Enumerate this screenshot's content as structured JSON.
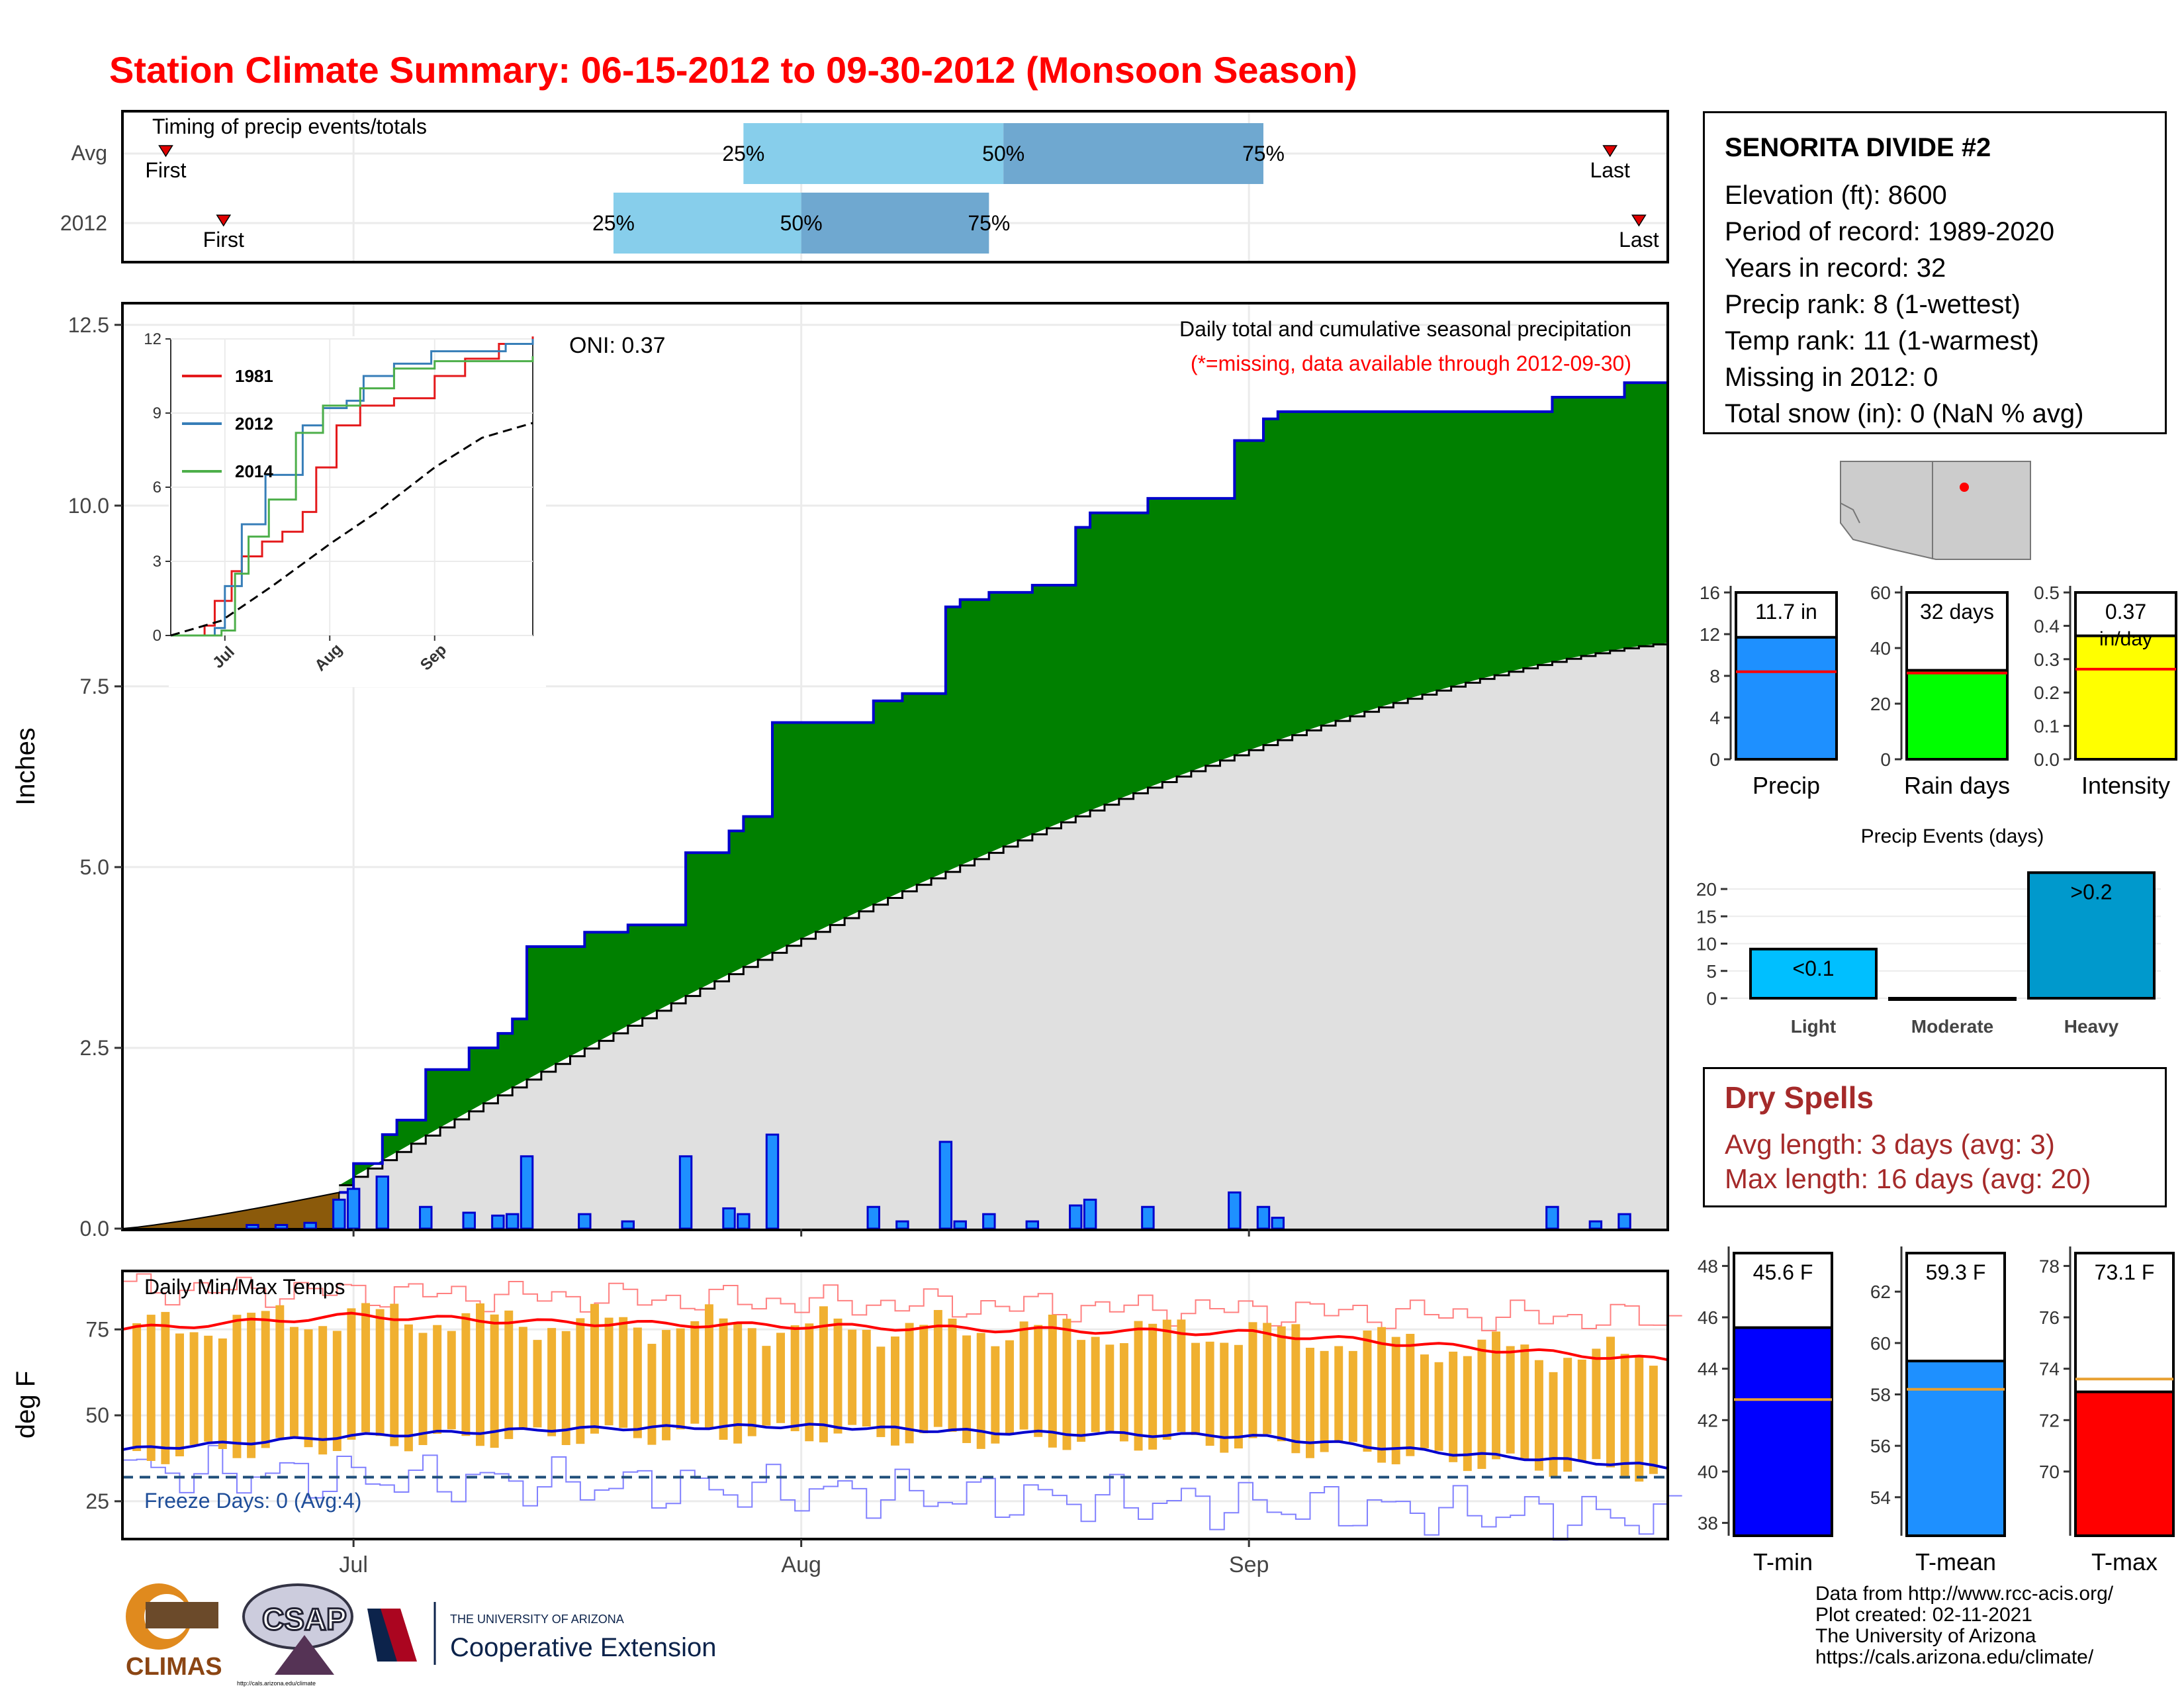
{
  "title": "Station Climate Summary: 06-15-2012 to 09-30-2012 (Monsoon Season)",
  "colors": {
    "title": "#ff0000",
    "cum_obs_fill": "#008000",
    "cum_obs_line": "#0000cd",
    "cum_avg_fill": "#e0e0e0",
    "prior_fill": "#8b5a0b",
    "daily_bar": "#1e90ff",
    "timing_light": "#87ceeb",
    "timing_dark": "#6fa8d0",
    "temp_bar": "#f0b030",
    "tmax_line": "#ff0000",
    "tmin_line": "#0000cd",
    "dry_spells": "#a52a2a"
  },
  "timing": {
    "title": "Timing of precip events/totals",
    "rows": [
      {
        "label": "Avg",
        "first": "06-18",
        "p25": "07-28",
        "p50": "08-15",
        "p75": "09-02",
        "last": "09-26"
      },
      {
        "label": "2012",
        "first": "06-22",
        "p25": "07-19",
        "p50": "08-01",
        "p75": "08-14",
        "last": "09-28"
      }
    ],
    "first_label": "First",
    "last_label": "Last",
    "p25_label": "25%",
    "p50_label": "50%",
    "p75_label": "75%"
  },
  "precip_panel": {
    "ylabel": "Inches",
    "oni": "ONI: 0.37",
    "caption": "Daily total and cumulative seasonal precipitation",
    "missing_note": "(*=missing, data available through 2012-09-30)",
    "yticks": [
      "0.0",
      "2.5",
      "5.0",
      "7.5",
      "10.0",
      "12.5"
    ]
  },
  "inset": {
    "yticks": [
      "0",
      "3",
      "6",
      "9",
      "12"
    ],
    "xticks": [
      "Jul",
      "Aug",
      "Sep"
    ],
    "legend": [
      "1981",
      "2012",
      "2014"
    ]
  },
  "temp_panel": {
    "ylabel": "deg F",
    "title": "Daily Min/Max Temps",
    "freeze": "Freeze Days: 0 (Avg:4)",
    "yticks": [
      "25",
      "50",
      "75"
    ],
    "xticks": [
      "Jul",
      "Aug",
      "Sep"
    ]
  },
  "station": {
    "name": "SENORITA DIVIDE #2",
    "lines": [
      "Elevation (ft): 8600",
      "Period of record: 1989-2020",
      "Years in record: 32",
      "Precip rank: 8 (1-wettest)",
      "Temp rank: 11 (1-warmest)",
      "Missing in 2012: 0",
      "Total snow (in): 0 (NaN % avg)"
    ]
  },
  "summary_bars": [
    {
      "name": "Precip",
      "label": "11.7 in",
      "value": 11.7,
      "avg": 8.4,
      "ymax": 16,
      "yticks": [
        "0",
        "4",
        "8",
        "12",
        "16"
      ],
      "tickvals": [
        0,
        4,
        8,
        12,
        16
      ],
      "color": "#1e90ff"
    },
    {
      "name": "Rain days",
      "label": "32 days",
      "value": 32,
      "avg": 31,
      "ymax": 60,
      "yticks": [
        "0",
        "20",
        "40",
        "60"
      ],
      "tickvals": [
        0,
        20,
        40,
        60
      ],
      "color": "#00ff00"
    },
    {
      "name": "Intensity",
      "label": "0.37",
      "label2": "in/day",
      "value": 0.37,
      "avg": 0.27,
      "ymax": 0.5,
      "yticks": [
        "0.0",
        "0.1",
        "0.2",
        "0.3",
        "0.4",
        "0.5"
      ],
      "tickvals": [
        0,
        0.1,
        0.2,
        0.3,
        0.4,
        0.5
      ],
      "color": "#ffff00"
    }
  ],
  "events": {
    "title": "Precip Events (days)",
    "categories": [
      "Light",
      "Moderate",
      "Heavy"
    ],
    "labels": [
      "<0.1",
      "",
      ">0.2"
    ],
    "values": [
      9,
      0,
      23
    ],
    "colors": [
      "#00bfff",
      "#1e90ff",
      "#0099cc"
    ],
    "yticks": [
      "0",
      "5",
      "10",
      "15",
      "20"
    ],
    "tickvals": [
      0,
      5,
      10,
      15,
      20
    ]
  },
  "dry_spells": {
    "title": "Dry Spells",
    "avg": "Avg length: 3 days (avg: 3)",
    "max": "Max length: 16 days (avg: 20)"
  },
  "temp_bars": [
    {
      "name": "T-min",
      "label": "45.6 F",
      "value": 45.6,
      "avg": 42.8,
      "ymin": 37.5,
      "ymax": 48.5,
      "yticks": [
        "38",
        "40",
        "42",
        "44",
        "46",
        "48"
      ],
      "tickvals": [
        38,
        40,
        42,
        44,
        46,
        48
      ],
      "color": "#0000ff"
    },
    {
      "name": "T-mean",
      "label": "59.3 F",
      "value": 59.3,
      "avg": 58.2,
      "ymin": 52.5,
      "ymax": 63.5,
      "yticks": [
        "54",
        "56",
        "58",
        "60",
        "62"
      ],
      "tickvals": [
        54,
        56,
        58,
        60,
        62
      ],
      "color": "#1e90ff"
    },
    {
      "name": "T-max",
      "label": "73.1 F",
      "value": 73.1,
      "avg": 73.6,
      "ymin": 67.5,
      "ymax": 78.5,
      "yticks": [
        "70",
        "72",
        "74",
        "76",
        "78"
      ],
      "tickvals": [
        70,
        72,
        74,
        76,
        78
      ],
      "color": "#ff0000"
    }
  ],
  "credits": [
    "Data from http://www.rcc-acis.org/",
    "Plot created: 02-11-2021",
    "The University of Arizona",
    "https://cals.arizona.edu/climate/"
  ],
  "logos": {
    "climas": "CLIMAS",
    "csap": "CSAP",
    "csap_url": "http://cals.arizona.edu/climate",
    "ua_top": "THE UNIVERSITY OF ARIZONA",
    "ua_bottom": "Cooperative Extension"
  },
  "chart_data": [
    {
      "type": "area",
      "title": "Daily total and cumulative seasonal precipitation",
      "ylabel": "Inches",
      "ylim": [
        0,
        12.8
      ],
      "x_start": "2012-06-15",
      "x_end": "2012-09-30",
      "series": [
        {
          "name": "2012",
          "steps": [
            [
              "2012-06-30",
              0.5
            ],
            [
              "2012-07-01",
              0.9
            ],
            [
              "2012-07-03",
              1.3
            ],
            [
              "2012-07-04",
              1.5
            ],
            [
              "2012-07-06",
              2.2
            ],
            [
              "2012-07-09",
              2.5
            ],
            [
              "2012-07-11",
              2.7
            ],
            [
              "2012-07-12",
              2.9
            ],
            [
              "2012-07-13",
              3.9
            ],
            [
              "2012-07-17",
              4.1
            ],
            [
              "2012-07-20",
              4.2
            ],
            [
              "2012-07-24",
              5.2
            ],
            [
              "2012-07-27",
              5.5
            ],
            [
              "2012-07-28",
              5.7
            ],
            [
              "2012-07-30",
              7.0
            ],
            [
              "2012-08-06",
              7.3
            ],
            [
              "2012-08-08",
              7.4
            ],
            [
              "2012-08-11",
              8.6
            ],
            [
              "2012-08-12",
              8.7
            ],
            [
              "2012-08-14",
              8.8
            ],
            [
              "2012-08-17",
              8.9
            ],
            [
              "2012-08-20",
              9.7
            ],
            [
              "2012-08-21",
              9.9
            ],
            [
              "2012-08-25",
              10.1
            ],
            [
              "2012-08-31",
              10.9
            ],
            [
              "2012-09-02",
              11.2
            ],
            [
              "2012-09-03",
              11.3
            ],
            [
              "2012-09-05",
              11.3
            ],
            [
              "2012-09-22",
              11.5
            ],
            [
              "2012-09-27",
              11.7
            ]
          ]
        },
        {
          "name": "prior",
          "steps": [
            [
              "2012-06-15",
              0.0
            ],
            [
              "2012-06-30",
              0.5
            ]
          ]
        },
        {
          "name": "average",
          "start": 0.6,
          "end": 8.1
        }
      ],
      "daily_bars": [
        [
          "2012-06-24",
          0.05
        ],
        [
          "2012-06-26",
          0.05
        ],
        [
          "2012-06-28",
          0.08
        ],
        [
          "2012-06-30",
          0.4
        ],
        [
          "2012-07-01",
          0.55
        ],
        [
          "2012-07-03",
          0.72
        ],
        [
          "2012-07-06",
          0.3
        ],
        [
          "2012-07-09",
          0.22
        ],
        [
          "2012-07-11",
          0.18
        ],
        [
          "2012-07-12",
          0.2
        ],
        [
          "2012-07-13",
          1.0
        ],
        [
          "2012-07-17",
          0.2
        ],
        [
          "2012-07-20",
          0.1
        ],
        [
          "2012-07-24",
          1.0
        ],
        [
          "2012-07-27",
          0.28
        ],
        [
          "2012-07-28",
          0.2
        ],
        [
          "2012-07-30",
          1.3
        ],
        [
          "2012-08-06",
          0.3
        ],
        [
          "2012-08-08",
          0.1
        ],
        [
          "2012-08-11",
          1.2
        ],
        [
          "2012-08-12",
          0.1
        ],
        [
          "2012-08-14",
          0.2
        ],
        [
          "2012-08-17",
          0.1
        ],
        [
          "2012-08-20",
          0.32
        ],
        [
          "2012-08-21",
          0.4
        ],
        [
          "2012-08-25",
          0.3
        ],
        [
          "2012-08-31",
          0.5
        ],
        [
          "2012-09-02",
          0.3
        ],
        [
          "2012-09-03",
          0.15
        ],
        [
          "2012-09-22",
          0.3
        ],
        [
          "2012-09-25",
          0.1
        ],
        [
          "2012-09-27",
          0.2
        ]
      ]
    },
    {
      "type": "line",
      "title": "inset cumulative precipitation",
      "ylim": [
        0,
        12
      ],
      "series": [
        {
          "name": "1981",
          "color": "#e41a1c",
          "points": [
            [
              "06-15",
              0
            ],
            [
              "06-25",
              0.4
            ],
            [
              "06-28",
              1.4
            ],
            [
              "07-03",
              2.6
            ],
            [
              "07-06",
              3.2
            ],
            [
              "07-12",
              3.8
            ],
            [
              "07-18",
              4.2
            ],
            [
              "07-24",
              5
            ],
            [
              "07-28",
              6.8
            ],
            [
              "08-03",
              8.5
            ],
            [
              "08-10",
              9.3
            ],
            [
              "08-20",
              9.6
            ],
            [
              "09-01",
              10.5
            ],
            [
              "09-10",
              11.2
            ],
            [
              "09-20",
              11.8
            ],
            [
              "09-30",
              12.1
            ]
          ]
        },
        {
          "name": "2012",
          "color": "#377eb8",
          "points": [
            [
              "06-15",
              0
            ],
            [
              "06-28",
              0.3
            ],
            [
              "07-01",
              2.0
            ],
            [
              "07-06",
              4.5
            ],
            [
              "07-13",
              6.5
            ],
            [
              "07-24",
              8.5
            ],
            [
              "07-30",
              9.2
            ],
            [
              "08-06",
              9.5
            ],
            [
              "08-11",
              10.5
            ],
            [
              "08-20",
              11
            ],
            [
              "08-31",
              11.5
            ],
            [
              "09-22",
              11.8
            ],
            [
              "09-30",
              12.0
            ]
          ]
        },
        {
          "name": "2014",
          "color": "#4daf4a",
          "points": [
            [
              "06-15",
              0
            ],
            [
              "06-30",
              0.2
            ],
            [
              "07-04",
              2.5
            ],
            [
              "07-08",
              4
            ],
            [
              "07-14",
              5.5
            ],
            [
              "07-22",
              8.2
            ],
            [
              "07-30",
              9.3
            ],
            [
              "08-10",
              10
            ],
            [
              "08-20",
              10.8
            ],
            [
              "09-01",
              11.1
            ],
            [
              "09-30",
              11.3
            ]
          ]
        },
        {
          "name": "average",
          "color": "#000000",
          "points": [
            [
              "06-15",
              0
            ],
            [
              "06-30",
              0.6
            ],
            [
              "07-15",
              2.0
            ],
            [
              "08-01",
              3.7
            ],
            [
              "08-15",
              5.0
            ],
            [
              "09-01",
              6.8
            ],
            [
              "09-15",
              8.0
            ],
            [
              "09-30",
              8.6
            ]
          ]
        }
      ]
    },
    {
      "type": "line",
      "title": "Daily Min/Max Temps",
      "ylabel": "deg F",
      "ylim": [
        14,
        92
      ],
      "freeze_line": 32,
      "tmax_avg": [
        [
          "06-15",
          75
        ],
        [
          "07-01",
          79
        ],
        [
          "07-15",
          77
        ],
        [
          "08-01",
          76
        ],
        [
          "08-15",
          75
        ],
        [
          "09-01",
          74
        ],
        [
          "09-15",
          70
        ],
        [
          "09-30",
          66
        ]
      ],
      "tmin_avg": [
        [
          "06-15",
          40
        ],
        [
          "07-01",
          44
        ],
        [
          "07-15",
          46
        ],
        [
          "08-01",
          47
        ],
        [
          "08-15",
          45
        ],
        [
          "09-01",
          44
        ],
        [
          "09-15",
          39
        ],
        [
          "09-30",
          35
        ]
      ],
      "tmax_record_start": 87,
      "tmax_record_end": 78,
      "tmin_record_start": 34,
      "tmin_record_end": 20
    },
    {
      "type": "bar",
      "title": "Precip Events (days)",
      "categories": [
        "Light",
        "Moderate",
        "Heavy"
      ],
      "values": [
        9,
        0,
        23
      ]
    }
  ]
}
